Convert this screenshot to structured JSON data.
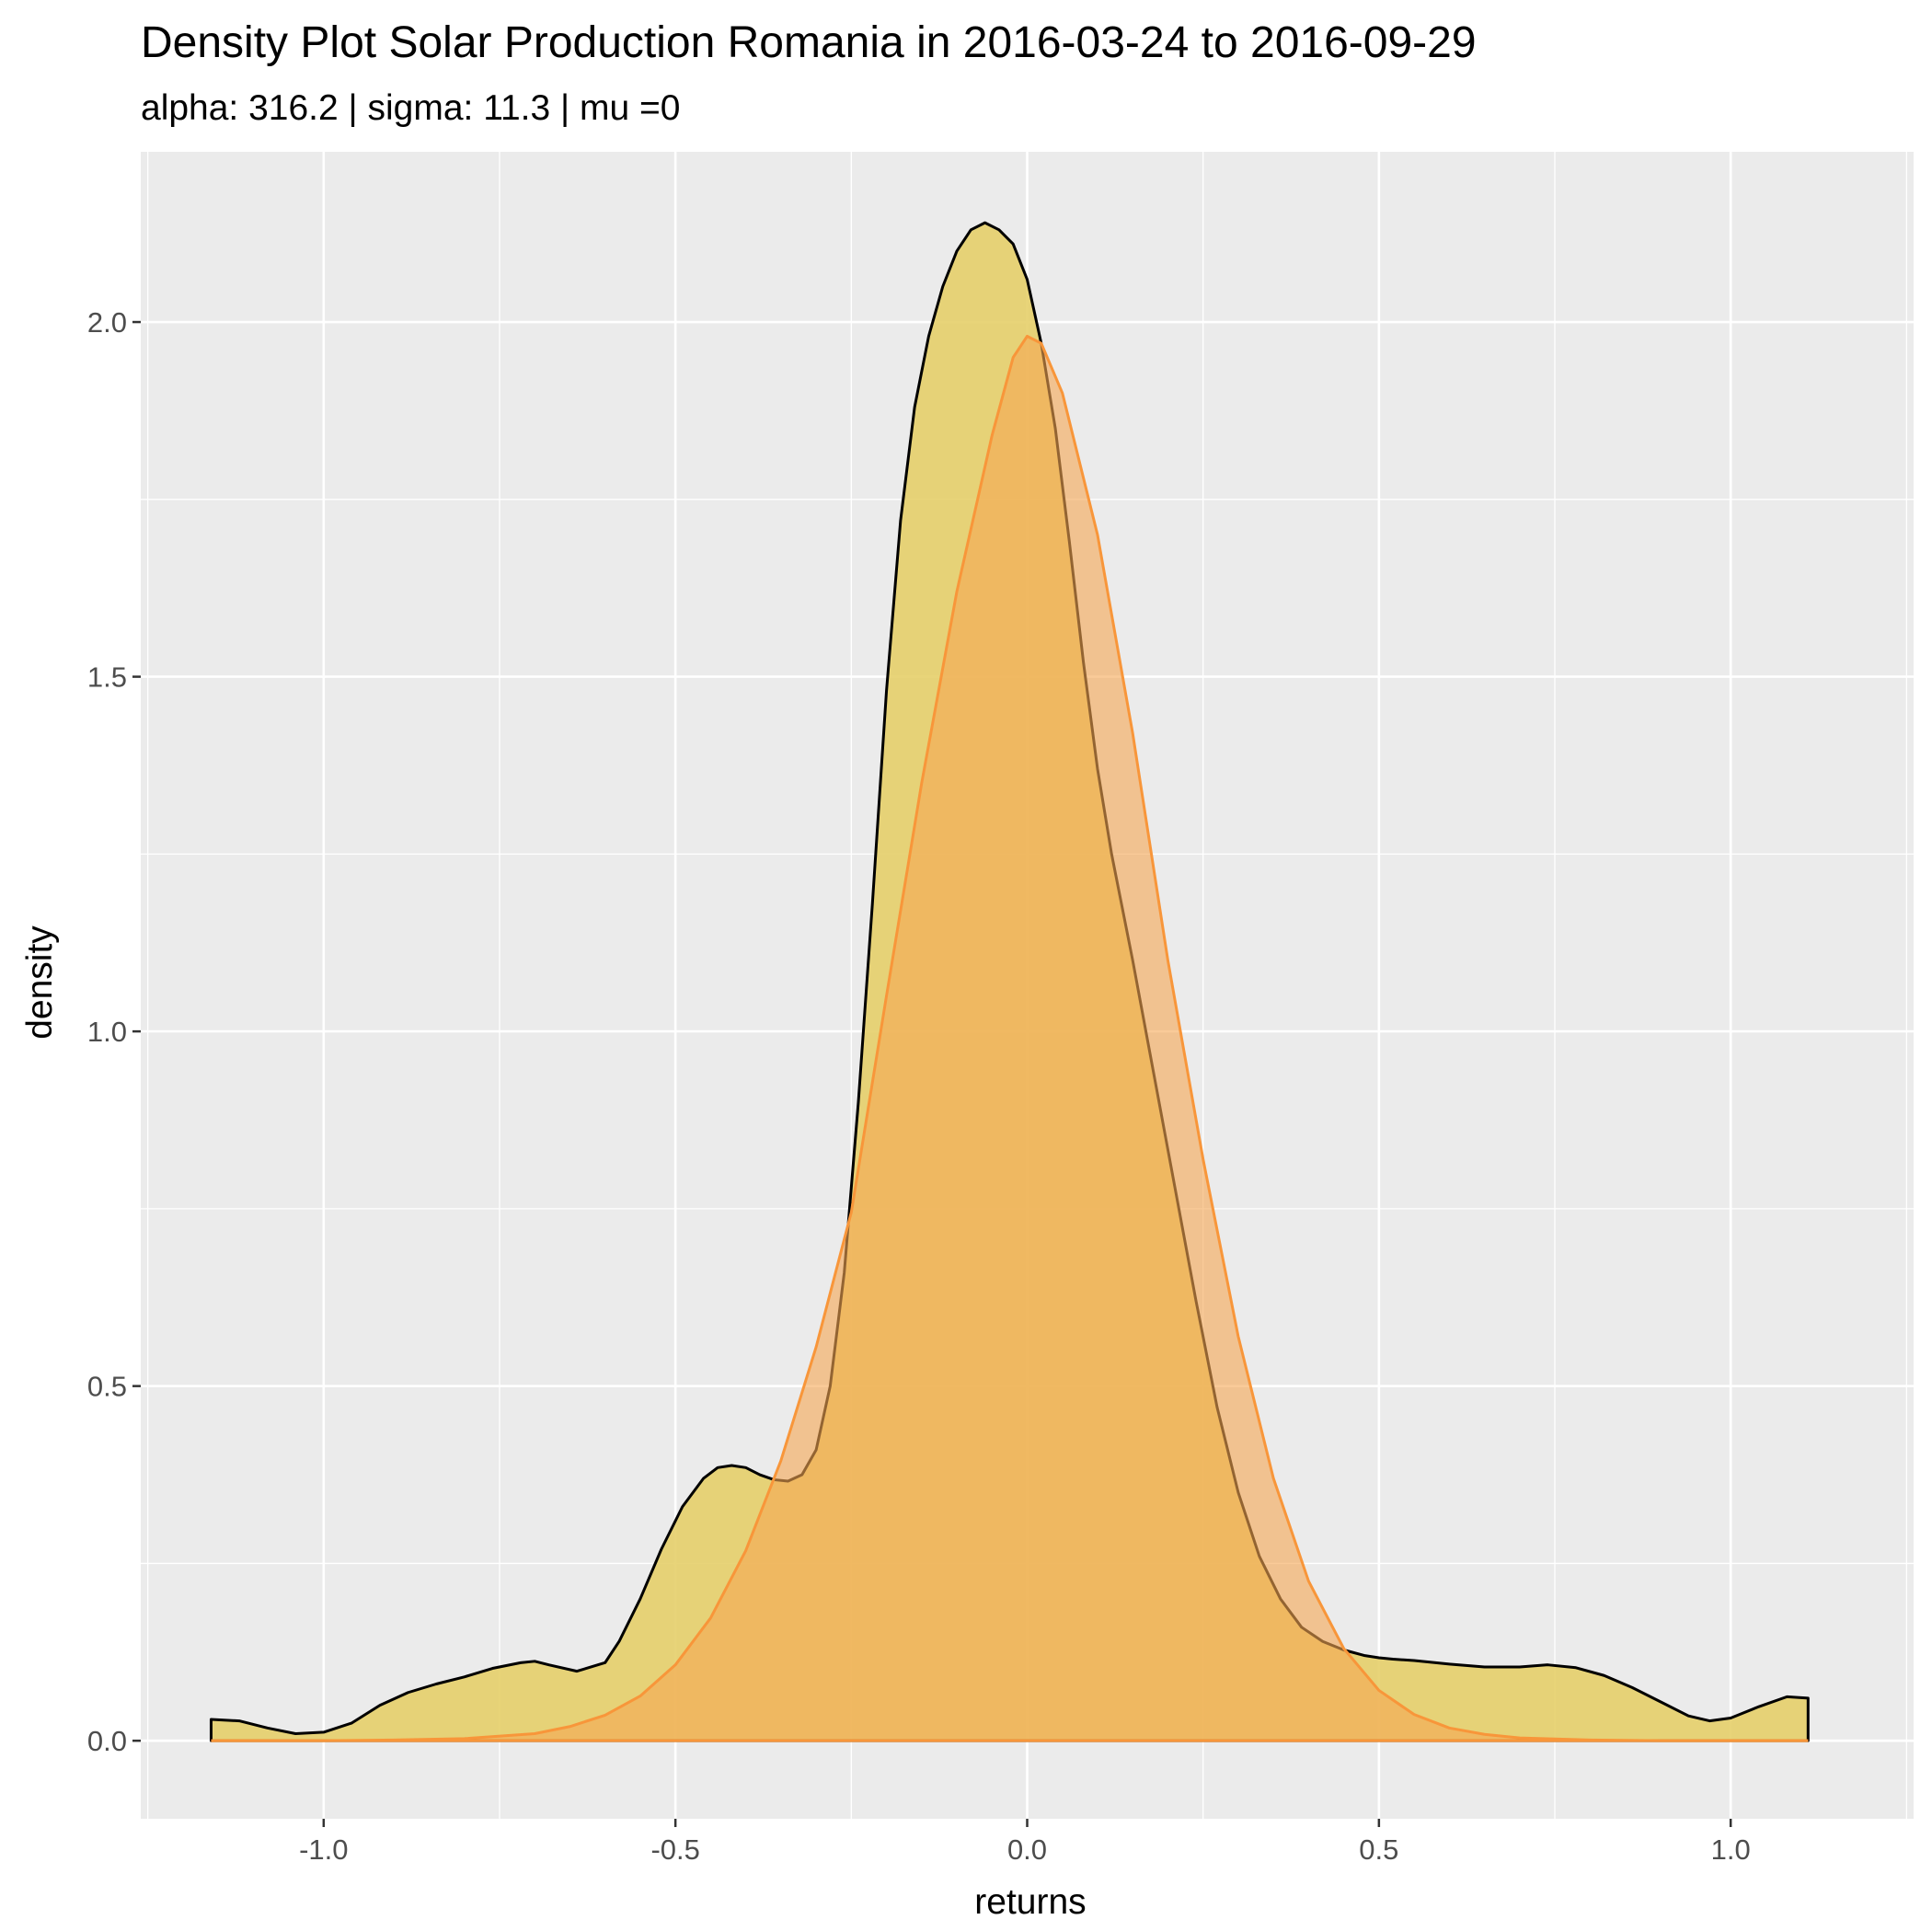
{
  "chart_data": {
    "type": "area",
    "title": "Density Plot Solar Production Romania in 2016-03-24 to 2016-09-29",
    "subtitle": "alpha: 316.2 | sigma: 11.3 | mu =0",
    "xlabel": "returns",
    "ylabel": "density",
    "xlim": [
      -1.26,
      1.26
    ],
    "ylim": [
      -0.11,
      2.24
    ],
    "x_ticks": [
      -1.0,
      -0.5,
      0.0,
      0.5,
      1.0
    ],
    "x_tick_labels": [
      "-1.0",
      "-0.5",
      "0.0",
      "0.5",
      "1.0"
    ],
    "y_ticks": [
      0.0,
      0.5,
      1.0,
      1.5,
      2.0
    ],
    "y_tick_labels": [
      "0.0",
      "0.5",
      "1.0",
      "1.5",
      "2.0"
    ],
    "grid": true,
    "legend": "none",
    "colors": {
      "panel_background": "#ebebeb",
      "grid": "#ffffff",
      "empirical_fill": "#e6cf6a",
      "empirical_line": "#000000",
      "fitted_fill": "#f5a653",
      "fitted_line": "#f8963a"
    },
    "series": [
      {
        "kind": "empirical_density",
        "x": [
          -1.16,
          -1.12,
          -1.08,
          -1.04,
          -1.0,
          -0.96,
          -0.92,
          -0.88,
          -0.84,
          -0.8,
          -0.76,
          -0.72,
          -0.7,
          -0.68,
          -0.64,
          -0.6,
          -0.58,
          -0.55,
          -0.52,
          -0.49,
          -0.46,
          -0.44,
          -0.42,
          -0.4,
          -0.38,
          -0.36,
          -0.34,
          -0.32,
          -0.3,
          -0.28,
          -0.26,
          -0.24,
          -0.22,
          -0.2,
          -0.18,
          -0.16,
          -0.14,
          -0.12,
          -0.1,
          -0.08,
          -0.06,
          -0.04,
          -0.02,
          0.0,
          0.02,
          0.04,
          0.06,
          0.08,
          0.1,
          0.12,
          0.15,
          0.18,
          0.21,
          0.24,
          0.27,
          0.3,
          0.33,
          0.36,
          0.39,
          0.42,
          0.45,
          0.48,
          0.5,
          0.52,
          0.55,
          0.6,
          0.65,
          0.7,
          0.74,
          0.78,
          0.82,
          0.86,
          0.9,
          0.94,
          0.97,
          1.0,
          1.04,
          1.08,
          1.11
        ],
        "y": [
          0.03,
          0.028,
          0.018,
          0.01,
          0.012,
          0.025,
          0.05,
          0.068,
          0.08,
          0.09,
          0.102,
          0.11,
          0.112,
          0.107,
          0.098,
          0.11,
          0.14,
          0.2,
          0.27,
          0.33,
          0.37,
          0.385,
          0.388,
          0.385,
          0.375,
          0.368,
          0.366,
          0.375,
          0.41,
          0.5,
          0.66,
          0.9,
          1.18,
          1.48,
          1.72,
          1.88,
          1.98,
          2.05,
          2.1,
          2.13,
          2.14,
          2.13,
          2.11,
          2.06,
          1.97,
          1.85,
          1.69,
          1.52,
          1.37,
          1.25,
          1.1,
          0.94,
          0.78,
          0.62,
          0.47,
          0.35,
          0.26,
          0.2,
          0.16,
          0.14,
          0.128,
          0.12,
          0.117,
          0.115,
          0.113,
          0.108,
          0.104,
          0.104,
          0.107,
          0.103,
          0.092,
          0.075,
          0.055,
          0.035,
          0.028,
          0.032,
          0.048,
          0.062,
          0.06
        ]
      },
      {
        "kind": "fitted_density",
        "x": [
          -1.16,
          -1.0,
          -0.9,
          -0.8,
          -0.7,
          -0.65,
          -0.6,
          -0.55,
          -0.5,
          -0.45,
          -0.4,
          -0.35,
          -0.3,
          -0.25,
          -0.2,
          -0.15,
          -0.1,
          -0.05,
          -0.02,
          0.0,
          0.02,
          0.05,
          0.1,
          0.15,
          0.2,
          0.25,
          0.3,
          0.35,
          0.4,
          0.45,
          0.5,
          0.55,
          0.6,
          0.65,
          0.7,
          0.8,
          0.9,
          1.0,
          1.11
        ],
        "y": [
          0.0,
          0.0,
          0.001,
          0.003,
          0.01,
          0.02,
          0.036,
          0.063,
          0.107,
          0.173,
          0.268,
          0.395,
          0.555,
          0.745,
          1.05,
          1.35,
          1.62,
          1.84,
          1.95,
          1.98,
          1.97,
          1.9,
          1.7,
          1.42,
          1.1,
          0.82,
          0.57,
          0.37,
          0.225,
          0.13,
          0.071,
          0.037,
          0.018,
          0.009,
          0.004,
          0.001,
          0.0,
          0.0,
          0.0
        ]
      }
    ]
  }
}
